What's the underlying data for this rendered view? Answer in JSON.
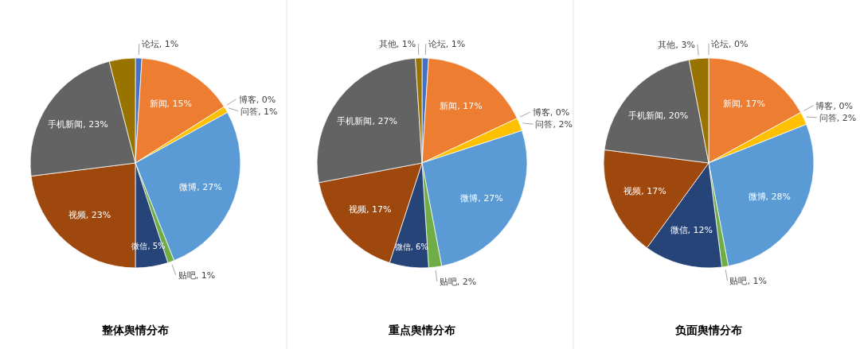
{
  "chart_data": [
    {
      "type": "pie",
      "title": "整体舆情分布",
      "categories": [
        "论坛",
        "新闻",
        "博客",
        "问答",
        "微博",
        "贴吧",
        "微信",
        "视频",
        "手机新闻",
        null
      ],
      "values": [
        1,
        15,
        0,
        1,
        27,
        1,
        5,
        23,
        23,
        4
      ],
      "colors": [
        "#4472c4",
        "#ed7d31",
        null,
        "#ffc000",
        "#5b9bd5",
        "#70ad47",
        "#264478",
        "#9e480e",
        "#636363",
        "#997300"
      ],
      "value_labels": [
        "1%",
        "15%",
        "0%",
        "1%",
        "27%",
        "1%",
        "5%",
        "23%",
        "23%",
        null
      ]
    },
    {
      "type": "pie",
      "title": "重点舆情分布",
      "categories": [
        "论坛",
        "新闻",
        "博客",
        "问答",
        "微博",
        "贴吧",
        "微信",
        "视频",
        "手机新闻",
        "其他"
      ],
      "values": [
        1,
        17,
        0,
        2,
        27,
        2,
        6,
        17,
        27,
        1
      ],
      "colors": [
        "#4472c4",
        "#ed7d31",
        null,
        "#ffc000",
        "#5b9bd5",
        "#70ad47",
        "#264478",
        "#9e480e",
        "#636363",
        "#997300"
      ],
      "value_labels": [
        "1%",
        "17%",
        "0%",
        "2%",
        "27%",
        "2%",
        "6%",
        "17%",
        "27%",
        "1%"
      ]
    },
    {
      "type": "pie",
      "title": "负面舆情分布",
      "categories": [
        "论坛",
        "新闻",
        "博客",
        "问答",
        "微博",
        "贴吧",
        "微信",
        "视频",
        "手机新闻",
        "其他"
      ],
      "values": [
        0,
        17,
        0,
        2,
        28,
        1,
        12,
        17,
        20,
        3
      ],
      "colors": [
        null,
        "#ed7d31",
        null,
        "#ffc000",
        "#5b9bd5",
        "#70ad47",
        "#264478",
        "#9e480e",
        "#636363",
        "#997300"
      ],
      "value_labels": [
        "0%",
        "17%",
        "0%",
        "2%",
        "28%",
        "1%",
        "12%",
        "17%",
        "20%",
        "3%"
      ]
    }
  ]
}
